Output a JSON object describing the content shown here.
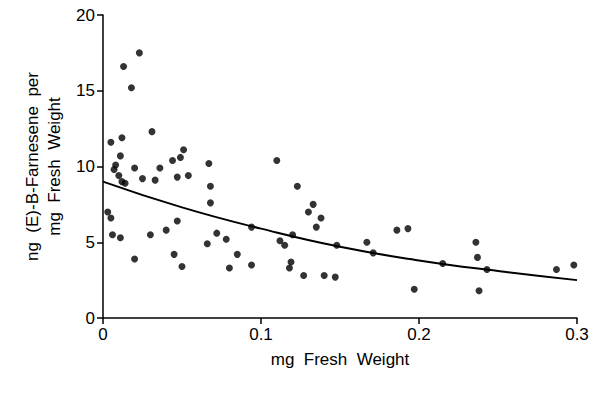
{
  "chart_data": {
    "type": "scatter",
    "x_label": "mg  Fresh  Weight",
    "y_label": "ng  (E)-B-Farnesene  per\nmg  Fresh  Weight",
    "xlim": [
      0,
      0.3
    ],
    "xticks": [
      0,
      0.1,
      0.2,
      0.3
    ],
    "ylim": [
      0,
      20
    ],
    "yticks": [
      0,
      5,
      10,
      15,
      20
    ],
    "grid": false,
    "series": [
      {
        "type": "scatter",
        "marker": "circle",
        "color": "#000000",
        "x": [
          0.005,
          0.003,
          0.005,
          0.006,
          0.007,
          0.008,
          0.01,
          0.011,
          0.012,
          0.011,
          0.012,
          0.014,
          0.013,
          0.018,
          0.023,
          0.02,
          0.02,
          0.025,
          0.03,
          0.031,
          0.033,
          0.036,
          0.04,
          0.044,
          0.045,
          0.047,
          0.047,
          0.049,
          0.05,
          0.051,
          0.054,
          0.067,
          0.066,
          0.068,
          0.068,
          0.072,
          0.078,
          0.08,
          0.085,
          0.094,
          0.094,
          0.11,
          0.112,
          0.115,
          0.118,
          0.119,
          0.12,
          0.123,
          0.127,
          0.13,
          0.135,
          0.133,
          0.138,
          0.14,
          0.148,
          0.147,
          0.167,
          0.171,
          0.186,
          0.193,
          0.197,
          0.215,
          0.236,
          0.237,
          0.238,
          0.243,
          0.287,
          0.298
        ],
        "values": [
          11.6,
          7.0,
          6.6,
          5.5,
          9.8,
          10.1,
          9.4,
          10.7,
          9.0,
          5.3,
          11.9,
          8.9,
          16.6,
          15.2,
          17.5,
          9.9,
          3.9,
          9.2,
          5.5,
          12.3,
          9.1,
          9.9,
          5.8,
          10.4,
          4.2,
          9.3,
          6.4,
          10.6,
          3.4,
          11.1,
          9.4,
          10.2,
          4.9,
          8.7,
          7.6,
          5.6,
          5.2,
          3.3,
          4.2,
          6.0,
          3.5,
          10.4,
          5.1,
          4.8,
          3.3,
          3.7,
          5.5,
          8.7,
          2.8,
          7.0,
          6.0,
          7.5,
          6.6,
          2.8,
          4.8,
          2.7,
          5.0,
          4.3,
          5.8,
          5.9,
          1.9,
          3.6,
          5.0,
          4.0,
          1.8,
          3.2,
          3.2,
          3.5
        ]
      },
      {
        "type": "line",
        "line_style": "solid",
        "color": "#000000",
        "x": [
          0,
          0.05,
          0.1,
          0.15,
          0.2,
          0.25,
          0.3
        ],
        "values": [
          9.0,
          7.3,
          5.9,
          4.7,
          3.8,
          3.1,
          2.5
        ]
      }
    ]
  }
}
